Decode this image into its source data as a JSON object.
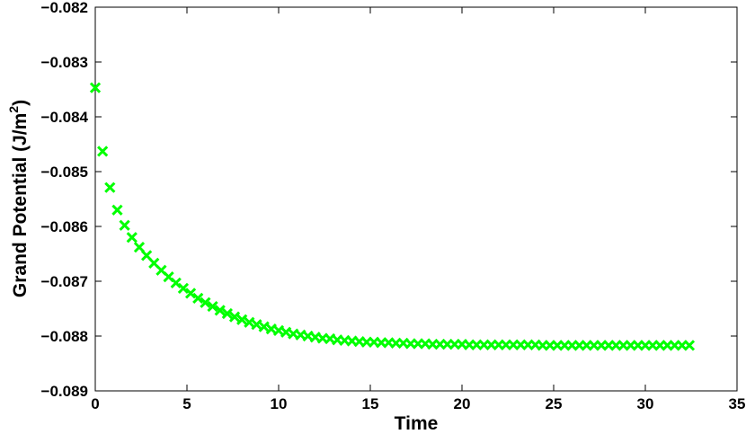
{
  "chart_data": {
    "type": "scatter",
    "title": "",
    "xlabel": "Time",
    "ylabel_main": "Grand Potential (J/m",
    "ylabel_sup": "2",
    "ylabel_close": ")",
    "xlim": [
      0,
      35
    ],
    "ylim": [
      -0.089,
      -0.082
    ],
    "xticks": [
      0,
      5,
      10,
      15,
      20,
      25,
      30,
      35
    ],
    "xtick_labels": [
      "0",
      "5",
      "10",
      "15",
      "20",
      "25",
      "30",
      "35"
    ],
    "yticks": [
      -0.082,
      -0.083,
      -0.084,
      -0.085,
      -0.086,
      -0.087,
      -0.088,
      -0.089
    ],
    "ytick_labels": [
      "−0.082",
      "−0.083",
      "−0.084",
      "−0.085",
      "−0.086",
      "−0.087",
      "−0.088",
      "−0.089"
    ],
    "grid": false,
    "marker": "x",
    "color": "#00ff00",
    "series": [
      {
        "x": [
          0,
          0.4,
          0.8,
          1.2,
          1.6,
          2.0,
          2.4,
          2.8,
          3.2,
          3.6,
          4.0,
          4.4,
          4.8,
          5.2,
          5.6,
          6.0,
          6.4,
          6.8,
          7.2,
          7.6,
          8.0,
          8.4,
          8.8,
          9.2,
          9.6,
          10.0,
          10.4,
          10.8,
          11.2,
          11.6,
          12.0,
          12.4,
          12.8,
          13.2,
          13.6,
          14.0,
          14.4,
          14.8,
          15.2,
          15.6,
          16.0,
          16.4,
          16.8,
          17.2,
          17.6,
          18.0,
          18.4,
          18.8,
          19.2,
          19.6,
          20.0,
          20.4,
          20.8,
          21.2,
          21.6,
          22.0,
          22.4,
          22.8,
          23.2,
          23.6,
          24.0,
          24.4,
          24.8,
          25.2,
          25.6,
          26.0,
          26.4,
          26.8,
          27.2,
          27.6,
          28.0,
          28.4,
          28.8,
          29.2,
          29.6,
          30.0,
          30.4,
          30.8,
          31.2,
          31.6,
          32.0,
          32.4
        ],
        "y": [
          -0.08347,
          -0.08463,
          -0.08529,
          -0.0857,
          -0.08598,
          -0.0862,
          -0.08638,
          -0.08653,
          -0.08667,
          -0.0868,
          -0.08692,
          -0.08703,
          -0.08713,
          -0.08722,
          -0.08731,
          -0.08739,
          -0.08746,
          -0.08753,
          -0.08759,
          -0.08765,
          -0.0877,
          -0.08775,
          -0.08779,
          -0.08783,
          -0.08787,
          -0.0879,
          -0.08793,
          -0.08796,
          -0.08798,
          -0.088,
          -0.08802,
          -0.08804,
          -0.08805,
          -0.08807,
          -0.08808,
          -0.08809,
          -0.0881,
          -0.08811,
          -0.08811,
          -0.08812,
          -0.08812,
          -0.08813,
          -0.08813,
          -0.08814,
          -0.08814,
          -0.08814,
          -0.08815,
          -0.08815,
          -0.08815,
          -0.08815,
          -0.08815,
          -0.08816,
          -0.08816,
          -0.08816,
          -0.08816,
          -0.08816,
          -0.08816,
          -0.08816,
          -0.08816,
          -0.08816,
          -0.08816,
          -0.08817,
          -0.08817,
          -0.08817,
          -0.08817,
          -0.08817,
          -0.08817,
          -0.08817,
          -0.08817,
          -0.08817,
          -0.08817,
          -0.08817,
          -0.08817,
          -0.08817,
          -0.08817,
          -0.08817,
          -0.08817,
          -0.08817,
          -0.08817,
          -0.08817,
          -0.08817,
          -0.08817
        ]
      }
    ]
  }
}
